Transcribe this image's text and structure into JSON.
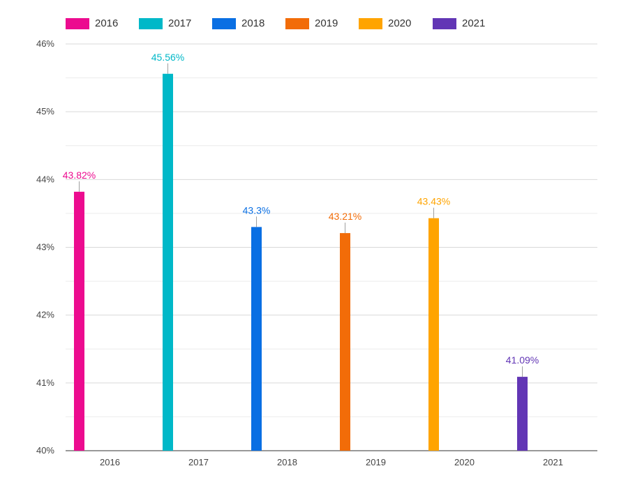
{
  "chart_data": {
    "type": "bar",
    "categories": [
      "2016",
      "2017",
      "2018",
      "2019",
      "2020",
      "2021"
    ],
    "series": [
      {
        "name": "2016",
        "color": "#EC0B8F",
        "values": [
          43.82,
          null,
          null,
          null,
          null,
          null
        ],
        "label": "43.82%"
      },
      {
        "name": "2017",
        "color": "#00B8C8",
        "values": [
          null,
          45.56,
          null,
          null,
          null,
          null
        ],
        "label": "45.56%"
      },
      {
        "name": "2018",
        "color": "#0A6FE3",
        "values": [
          null,
          null,
          43.3,
          null,
          null,
          null
        ],
        "label": "43.3%"
      },
      {
        "name": "2019",
        "color": "#F26C08",
        "values": [
          null,
          null,
          null,
          43.21,
          null,
          null
        ],
        "label": "43.21%"
      },
      {
        "name": "2020",
        "color": "#FFA400",
        "values": [
          null,
          null,
          null,
          null,
          43.43,
          null
        ],
        "label": "43.43%"
      },
      {
        "name": "2021",
        "color": "#6236B5",
        "values": [
          null,
          null,
          null,
          null,
          null,
          41.09
        ],
        "label": "41.09%"
      }
    ],
    "ylim": [
      40,
      46
    ],
    "yticks": [
      "40%",
      "41%",
      "42%",
      "43%",
      "44%",
      "45%",
      "46%"
    ],
    "legend_position": "top-left",
    "grid": true
  }
}
